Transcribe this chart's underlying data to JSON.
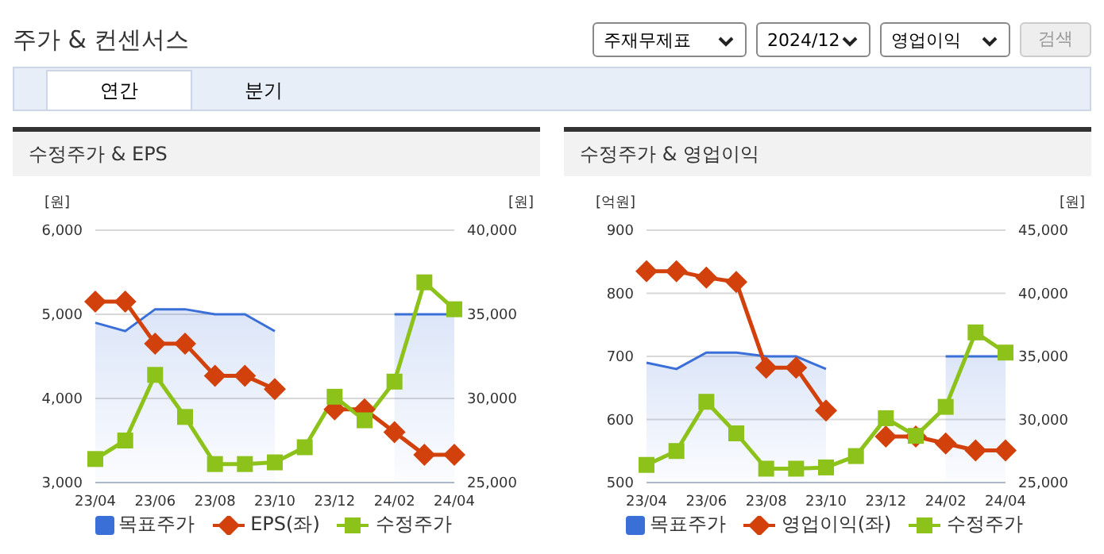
{
  "chart_data": [
    {
      "type": "line",
      "title": "수정주가 & EPS",
      "ylabel": "[원]",
      "y2label": "[원]",
      "annotations": [
        "주가 & 컨센서스",
        "주재무제표",
        "2024/12",
        "영업이익",
        "검색",
        "연간",
        "분기"
      ],
      "categories": [
        "23/04",
        null,
        "23/06",
        null,
        "23/08",
        null,
        "23/10",
        null,
        "23/12",
        null,
        "24/02",
        null,
        "24/04"
      ],
      "series": [
        {
          "name": "목표주가",
          "type": "area",
          "axis": "y2",
          "color": "#3a6fd8",
          "marker": "none",
          "values": [
            34500,
            34000,
            35300,
            35300,
            35000,
            35000,
            34000,
            null,
            null,
            null,
            35000,
            35000,
            35000
          ]
        },
        {
          "name": "EPS(좌)",
          "type": "line",
          "color": "#d2400c",
          "marker": "diamond",
          "values": [
            5150,
            5150,
            4650,
            4650,
            4270,
            4270,
            4110,
            null,
            3870,
            3870,
            3600,
            3330,
            3330
          ]
        },
        {
          "name": "수정주가",
          "type": "line",
          "axis": "y2",
          "color": "#8cc21a",
          "marker": "square",
          "values": [
            26400,
            27500,
            31400,
            28900,
            26100,
            26100,
            26200,
            27100,
            30100,
            28700,
            31000,
            36900,
            35300
          ]
        }
      ],
      "ylim": [
        3000,
        6000
      ],
      "yticks": [
        {
          "value": 3000,
          "label": "3,000"
        },
        {
          "value": 4000,
          "label": "4,000"
        },
        {
          "value": 5000,
          "label": "5,000"
        },
        {
          "value": 6000,
          "label": "6,000"
        }
      ],
      "y2lim": [
        25000,
        40000
      ],
      "y2ticks": [
        {
          "value": 25000,
          "label": "25,000"
        },
        {
          "value": 30000,
          "label": "30,000"
        },
        {
          "value": 35000,
          "label": "35,000"
        },
        {
          "value": 40000,
          "label": "40,000"
        }
      ],
      "grid": "y",
      "legend": "bottom"
    },
    {
      "type": "line",
      "title": "수정주가 & 영업이익",
      "ylabel": "[억원]",
      "y2label": "[원]",
      "categories": [
        "23/04",
        null,
        "23/06",
        null,
        "23/08",
        null,
        "23/10",
        null,
        "23/12",
        null,
        "24/02",
        null,
        "24/04"
      ],
      "series": [
        {
          "name": "목표주가",
          "type": "area",
          "axis": "y2",
          "color": "#3a6fd8",
          "marker": "none",
          "values": [
            34500,
            34000,
            35300,
            35300,
            35000,
            35000,
            34000,
            null,
            null,
            null,
            35000,
            35000,
            35000
          ]
        },
        {
          "name": "영업이익(좌)",
          "type": "line",
          "color": "#d2400c",
          "marker": "diamond",
          "values": [
            835,
            835,
            825,
            818,
            682,
            682,
            614,
            null,
            573,
            573,
            562,
            551,
            551
          ]
        },
        {
          "name": "수정주가",
          "type": "line",
          "axis": "y2",
          "color": "#8cc21a",
          "marker": "square",
          "values": [
            26400,
            27500,
            31400,
            28900,
            26100,
            26100,
            26200,
            27100,
            30100,
            28700,
            31000,
            36900,
            35300
          ]
        }
      ],
      "ylim": [
        500,
        900
      ],
      "yticks": [
        500,
        600,
        700,
        800,
        900
      ],
      "y2lim": [
        25000,
        45000
      ],
      "y2ticks": [
        {
          "value": 25000,
          "label": "25,000"
        },
        {
          "value": 30000,
          "label": "30,000"
        },
        {
          "value": 35000,
          "label": "35,000"
        },
        {
          "value": 40000,
          "label": "40,000"
        },
        {
          "value": 45000,
          "label": "45,000"
        }
      ],
      "grid": "y",
      "legend": "bottom"
    }
  ]
}
